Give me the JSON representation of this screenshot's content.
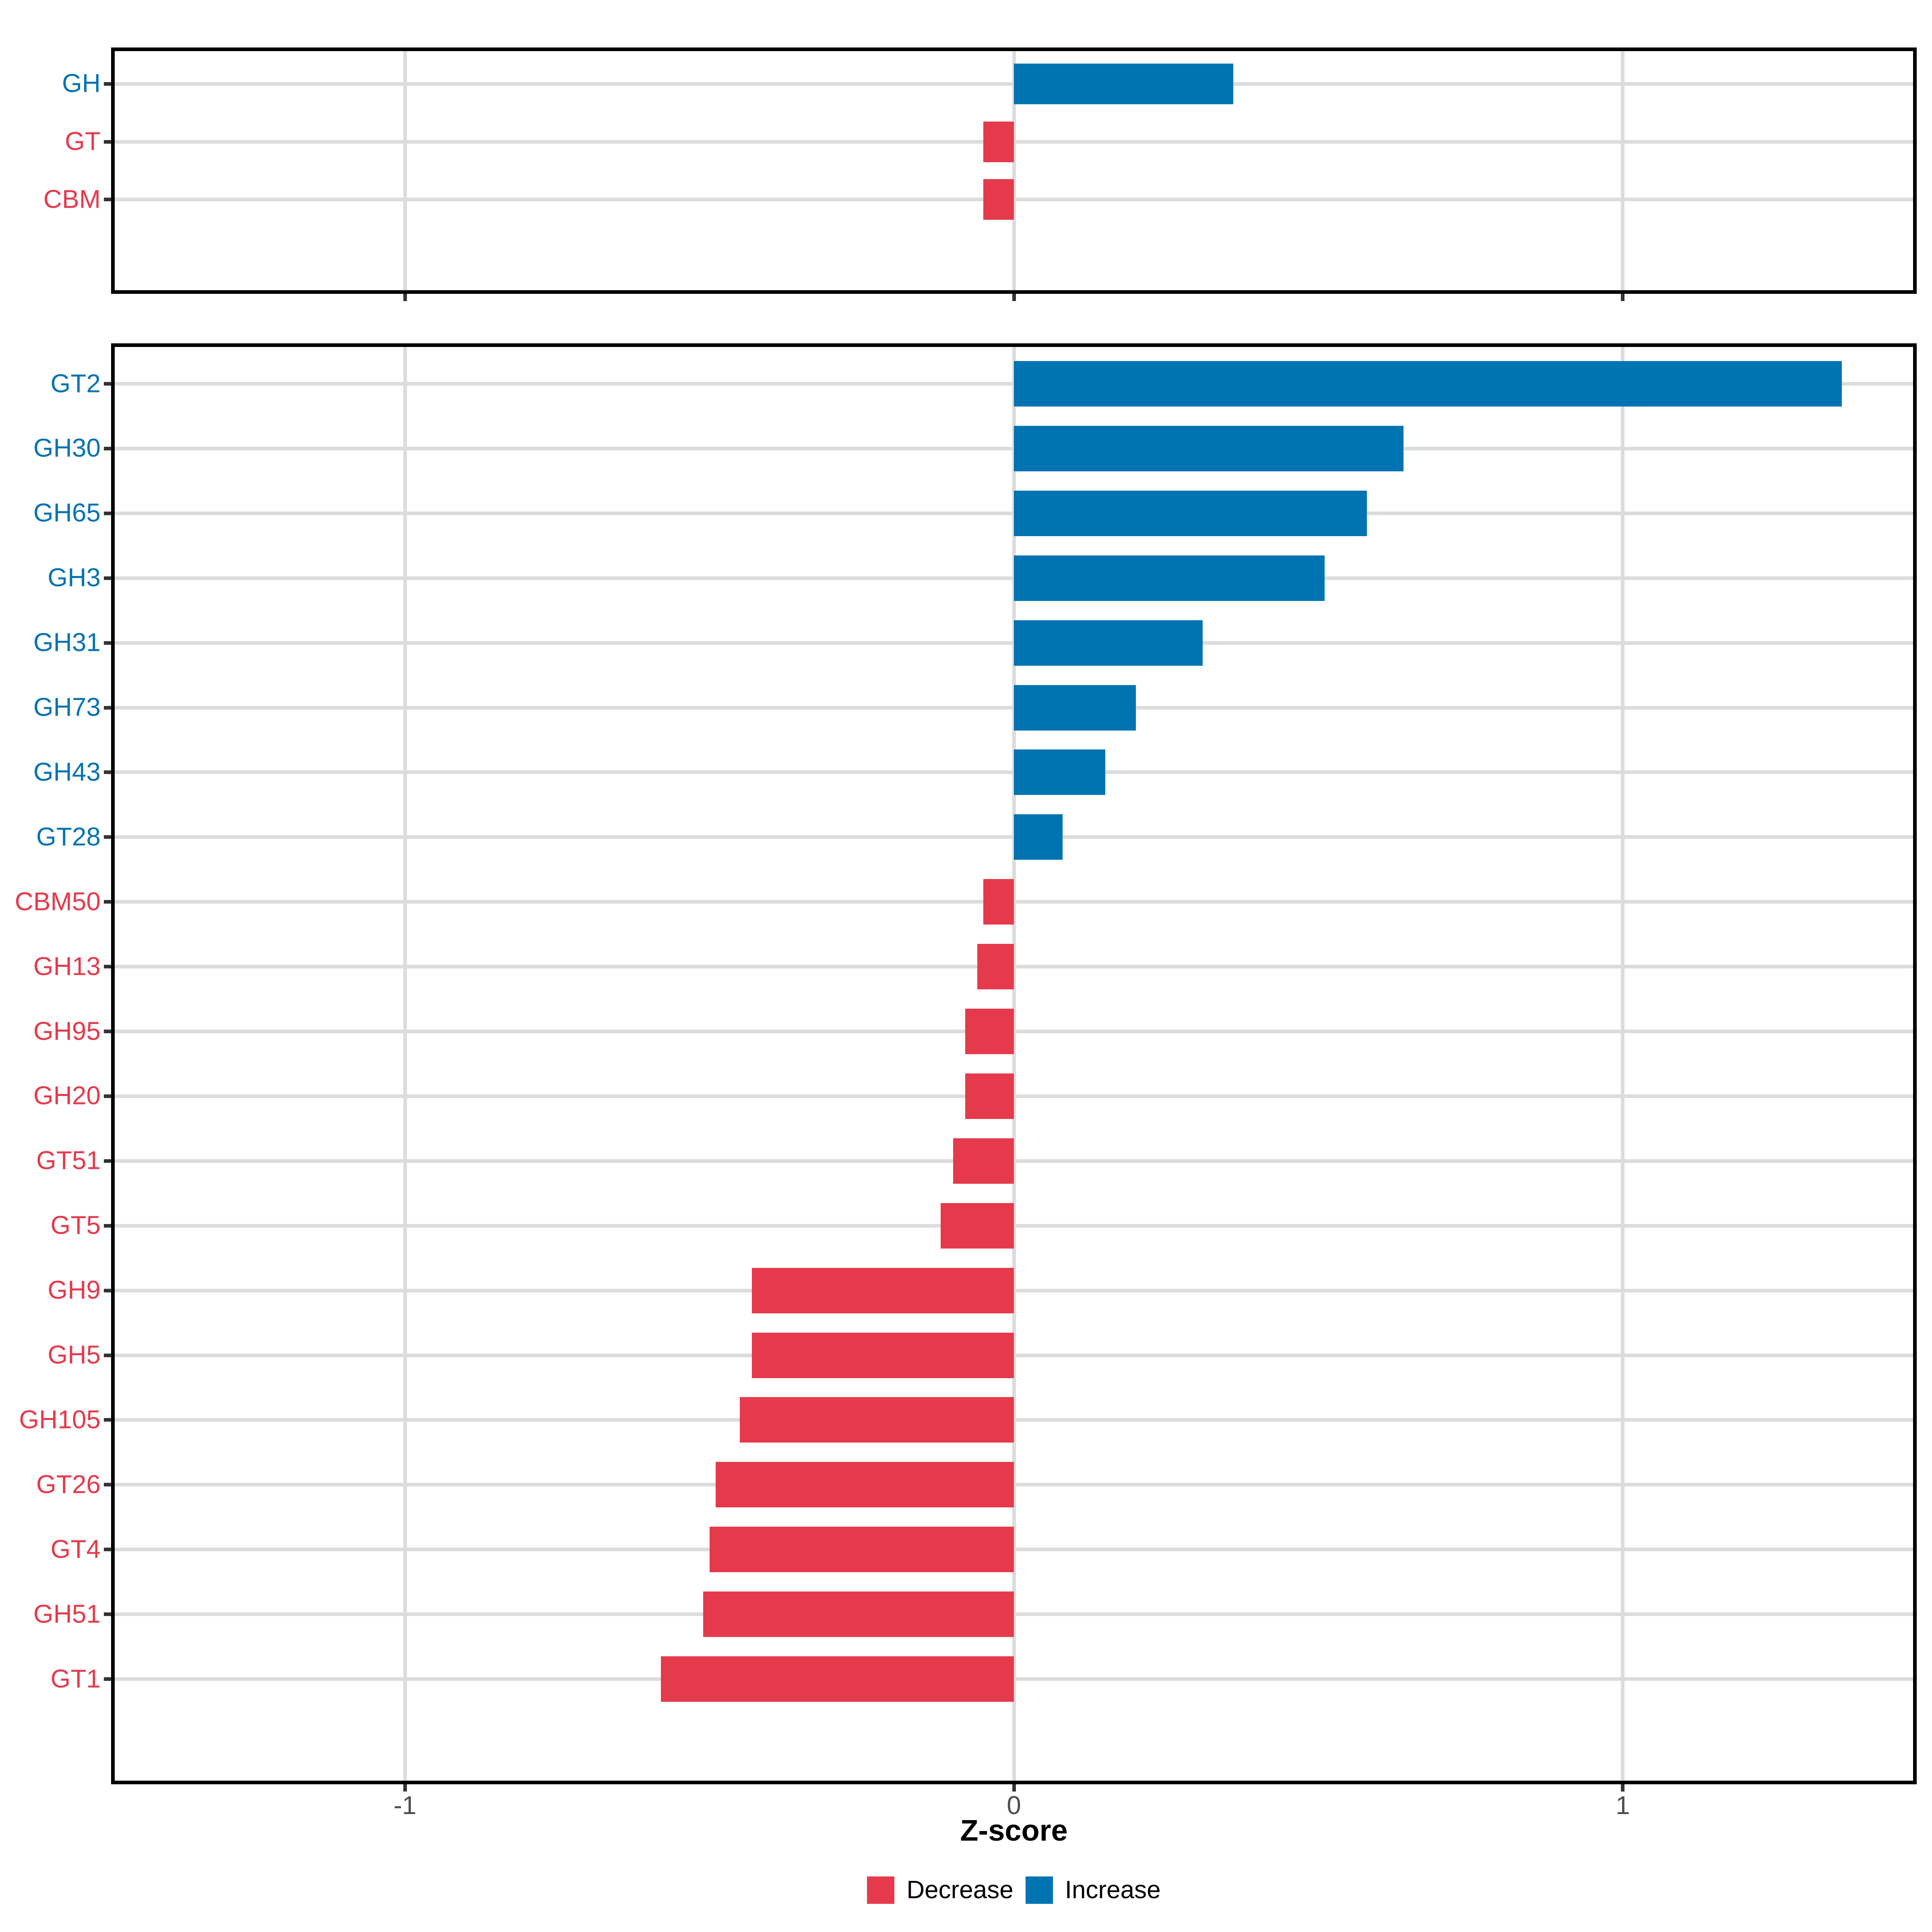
{
  "figure": {
    "background": "#FFFFFF",
    "x_axis": {
      "title": "Z-score",
      "ticks": [
        "-1",
        "0",
        "1"
      ],
      "tick_values": [
        -1,
        0,
        1
      ],
      "domain": [
        -1.48,
        1.48
      ]
    },
    "legend": {
      "position": "bottom",
      "items": [
        {
          "label": "Decrease",
          "color_key": "decrease"
        },
        {
          "label": "Increase",
          "color_key": "increase"
        }
      ]
    },
    "colors": {
      "increase": "#0073B2",
      "decrease": "#E53A4C",
      "grid": "#DCDCDC",
      "panel_border": "#000000",
      "axis_text": "#4D4D4D",
      "tick_mark": "#333333",
      "title_text": "#000000",
      "legend_text": "#000000"
    }
  },
  "chart_data": [
    {
      "type": "bar",
      "orientation": "horizontal",
      "panel": "cazyme-class-summary",
      "xlabel": "Z-score",
      "xlim": [
        -1.48,
        1.48
      ],
      "grid": true,
      "categories": [
        "GH",
        "GT",
        "CBM"
      ],
      "values": [
        0.36,
        -0.05,
        -0.05
      ],
      "directions": [
        "increase",
        "decrease",
        "decrease"
      ]
    },
    {
      "type": "bar",
      "orientation": "horizontal",
      "panel": "cazyme-families",
      "xlabel": "Z-score",
      "xlim": [
        -1.48,
        1.48
      ],
      "grid": true,
      "categories": [
        "GT2",
        "GH30",
        "GH65",
        "GH3",
        "GH31",
        "GH73",
        "GH43",
        "GT28",
        "CBM50",
        "GH13",
        "GH95",
        "GH20",
        "GT51",
        "GT5",
        "GH9",
        "GH5",
        "GH105",
        "GT26",
        "GT4",
        "GH51",
        "GT1"
      ],
      "values": [
        1.36,
        0.64,
        0.58,
        0.51,
        0.31,
        0.2,
        0.15,
        0.08,
        -0.05,
        -0.06,
        -0.08,
        -0.08,
        -0.1,
        -0.12,
        -0.43,
        -0.43,
        -0.45,
        -0.49,
        -0.5,
        -0.51,
        -0.58
      ],
      "directions": [
        "increase",
        "increase",
        "increase",
        "increase",
        "increase",
        "increase",
        "increase",
        "increase",
        "decrease",
        "decrease",
        "decrease",
        "decrease",
        "decrease",
        "decrease",
        "decrease",
        "decrease",
        "decrease",
        "decrease",
        "decrease",
        "decrease",
        "decrease"
      ]
    }
  ]
}
